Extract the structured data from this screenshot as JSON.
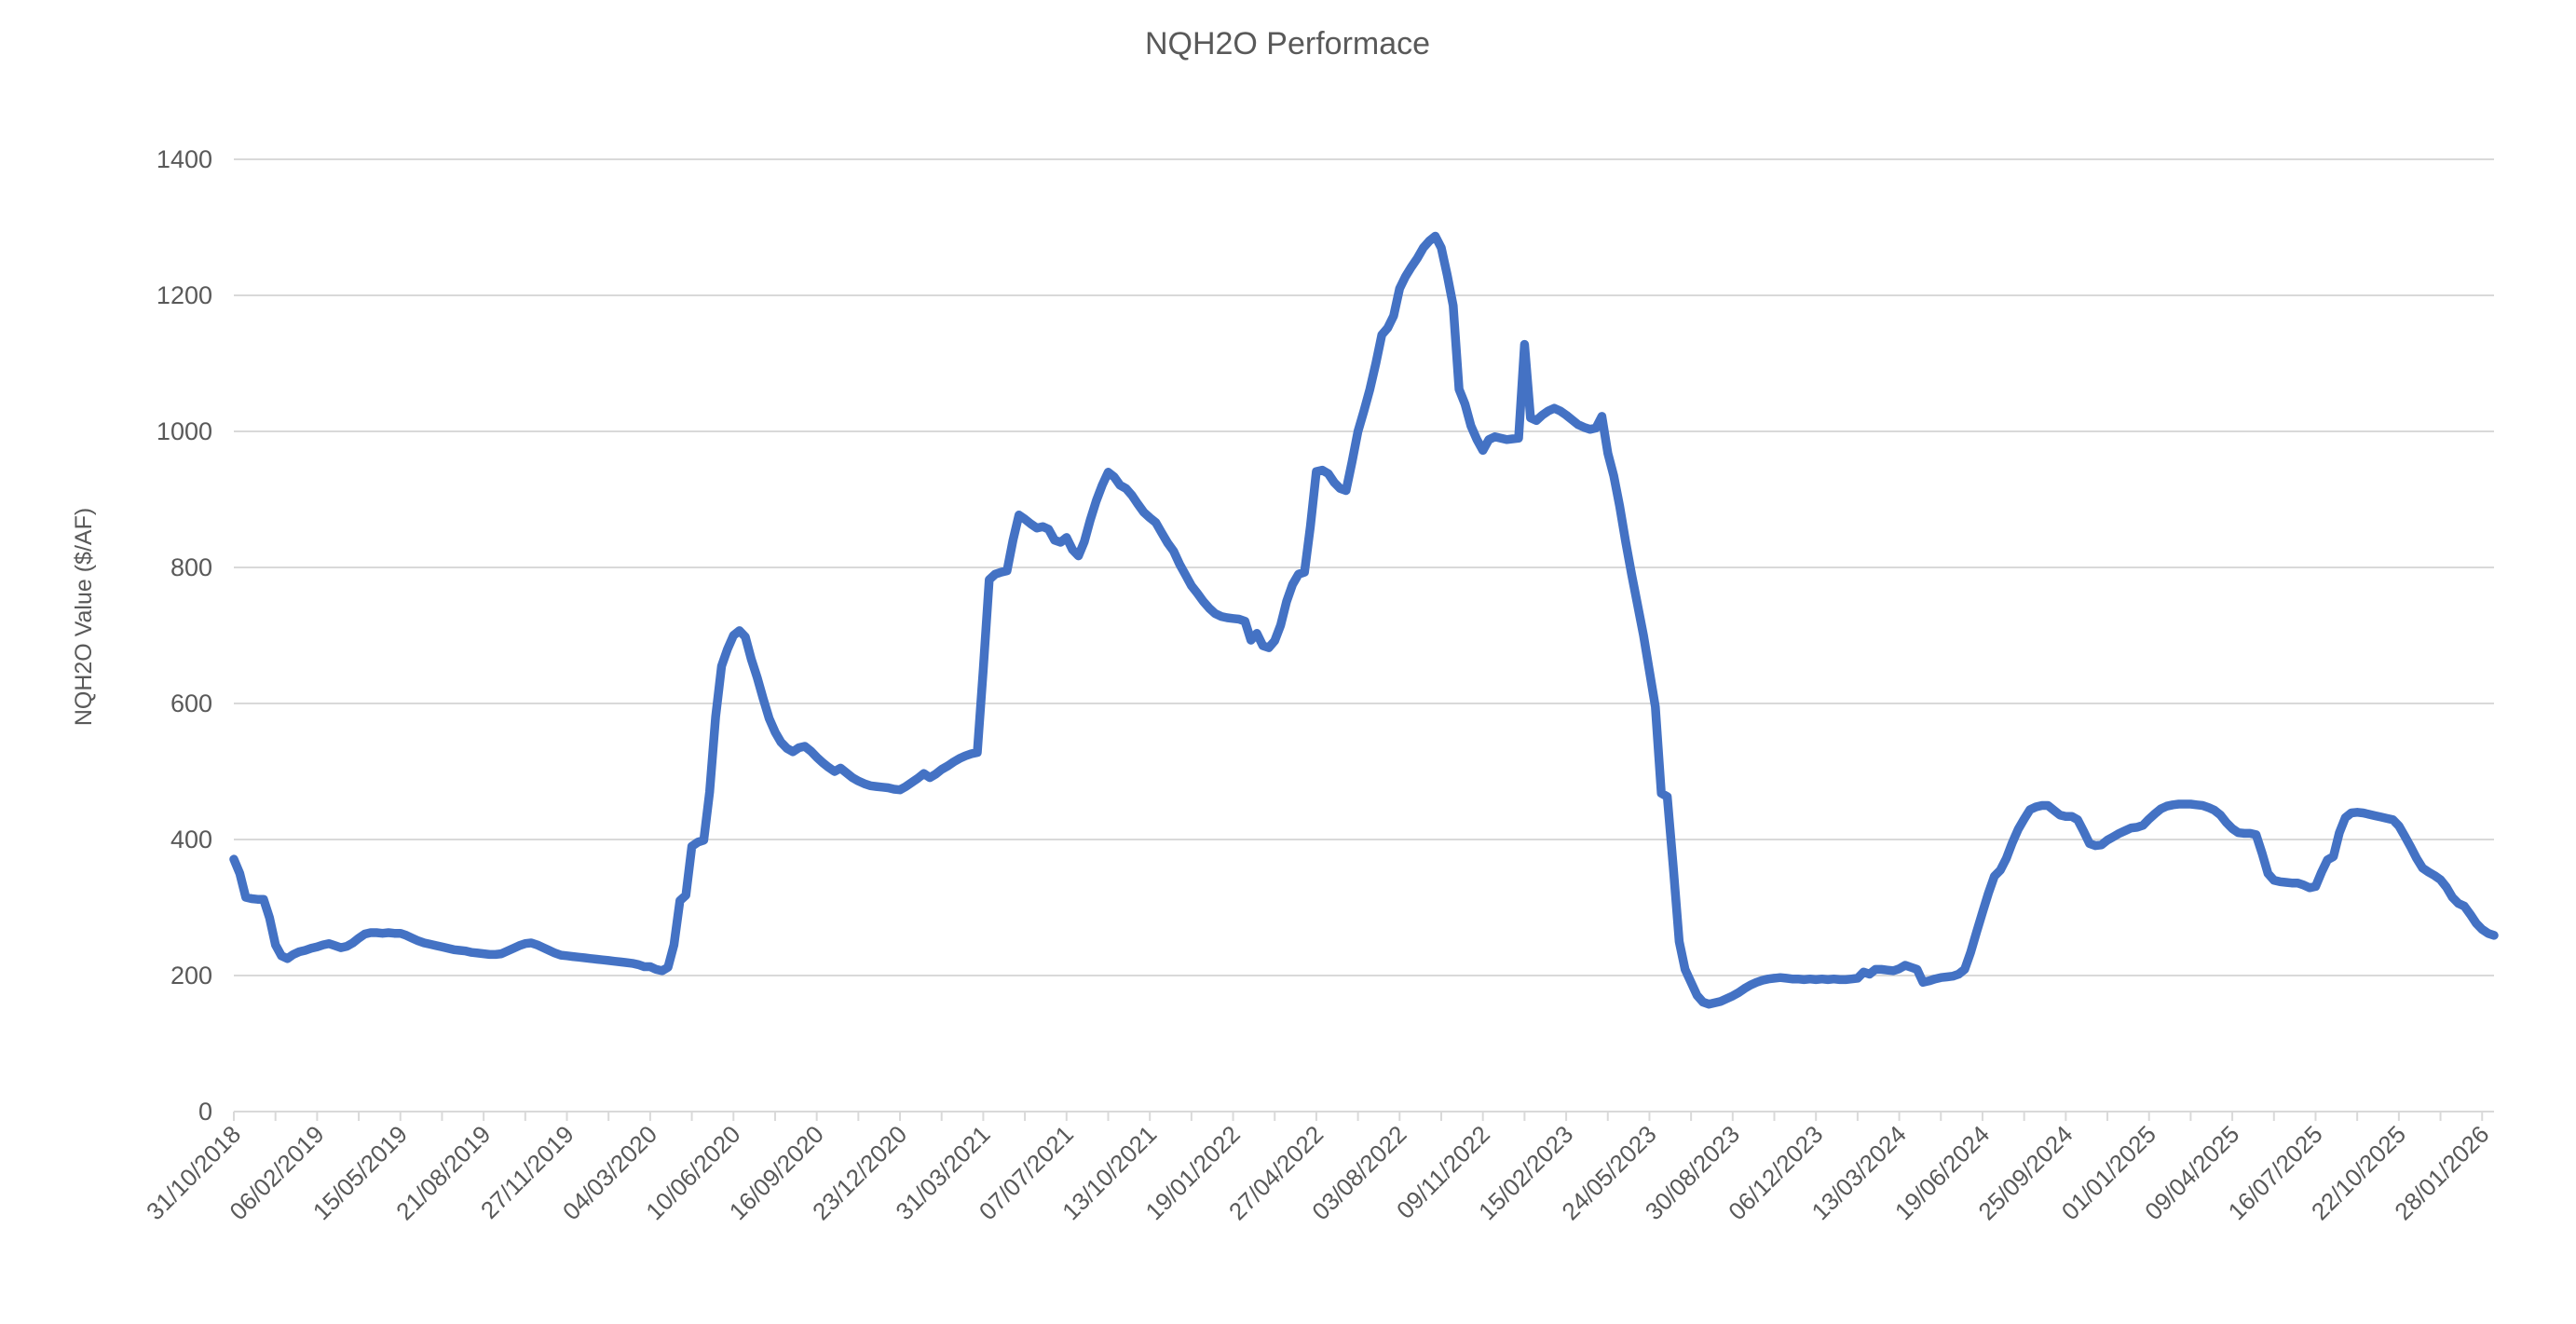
{
  "chart_data": {
    "type": "line",
    "title": "NQH2O Performace",
    "xlabel": "",
    "ylabel": "NQH2O Value ($/AF)",
    "ylim": [
      0,
      1400
    ],
    "ytick_step": 200,
    "ytick_labels": [
      "0",
      "200",
      "400",
      "600",
      "800",
      "1000",
      "1200",
      "1400"
    ],
    "grid": true,
    "legend": "none",
    "start_date": "31/10/2018",
    "weeks_per_point": 1,
    "label_every_n_weeks": 14,
    "minor_tick_every_n_weeks": 7,
    "x_tick_labels": [
      "31/10/2018",
      "06/02/2019",
      "15/05/2019",
      "21/08/2019",
      "27/11/2019",
      "04/03/2020",
      "10/06/2020",
      "16/09/2020",
      "23/12/2020",
      "31/03/2021",
      "07/07/2021",
      "13/10/2021",
      "19/01/2022",
      "27/04/2022",
      "03/08/2022",
      "09/11/2022",
      "15/02/2023",
      "24/05/2023",
      "30/08/2023",
      "06/12/2023",
      "13/03/2024",
      "19/06/2024",
      "25/09/2024",
      "01/01/2025",
      "09/04/2025",
      "16/07/2025",
      "22/10/2025",
      "28/01/2026"
    ],
    "series": [
      {
        "name": "NQH2O",
        "values": [
          371,
          350,
          315,
          313,
          312,
          312,
          285,
          245,
          229,
          225,
          231,
          235,
          237,
          240,
          242,
          245,
          247,
          244,
          241,
          243,
          248,
          255,
          261,
          263,
          263,
          262,
          263,
          262,
          262,
          259,
          255,
          251,
          248,
          246,
          244,
          242,
          240,
          238,
          237,
          236,
          234,
          233,
          232,
          231,
          231,
          232,
          236,
          240,
          244,
          247,
          248,
          245,
          241,
          237,
          233,
          230,
          229,
          228,
          227,
          226,
          225,
          224,
          223,
          222,
          221,
          220,
          219,
          218,
          216,
          213,
          213,
          209,
          207,
          212,
          245,
          310,
          318,
          390,
          396,
          399,
          470,
          580,
          655,
          680,
          700,
          707,
          698,
          665,
          638,
          607,
          578,
          558,
          543,
          534,
          529,
          535,
          537,
          530,
          521,
          513,
          506,
          500,
          505,
          498,
          491,
          486,
          482,
          479,
          478,
          477,
          476,
          474,
          473,
          478,
          484,
          490,
          497,
          491,
          496,
          503,
          508,
          514,
          519,
          523,
          526,
          528,
          650,
          782,
          790,
          793,
          795,
          840,
          877,
          871,
          864,
          858,
          860,
          856,
          840,
          837,
          844,
          826,
          817,
          838,
          870,
          898,
          921,
          940,
          933,
          921,
          916,
          906,
          893,
          881,
          873,
          866,
          851,
          836,
          824,
          805,
          789,
          773,
          762,
          750,
          740,
          732,
          728,
          726,
          725,
          724,
          721,
          693,
          703,
          685,
          682,
          692,
          715,
          750,
          775,
          790,
          793,
          860,
          941,
          943,
          938,
          925,
          916,
          913,
          955,
          1000,
          1030,
          1062,
          1100,
          1142,
          1152,
          1170,
          1210,
          1228,
          1242,
          1255,
          1270,
          1280,
          1287,
          1270,
          1230,
          1185,
          1062,
          1040,
          1008,
          988,
          972,
          988,
          992,
          990,
          988,
          989,
          990,
          1128,
          1020,
          1016,
          1024,
          1030,
          1034,
          1030,
          1024,
          1017,
          1010,
          1006,
          1003,
          1005,
          1022,
          968,
          935,
          890,
          838,
          790,
          745,
          700,
          648,
          595,
          468,
          463,
          360,
          250,
          209,
          190,
          171,
          161,
          158,
          160,
          162,
          166,
          170,
          175,
          181,
          186,
          190,
          193,
          195,
          196,
          197,
          196,
          195,
          195,
          194,
          195,
          194,
          195,
          194,
          195,
          194,
          194,
          195,
          196,
          205,
          202,
          209,
          209,
          208,
          207,
          210,
          215,
          212,
          209,
          190,
          192,
          195,
          197,
          198,
          199,
          202,
          209,
          234,
          264,
          293,
          321,
          346,
          355,
          372,
          395,
          415,
          430,
          444,
          448,
          450,
          450,
          443,
          436,
          434,
          434,
          429,
          412,
          394,
          391,
          392,
          399,
          404,
          409,
          413,
          417,
          418,
          421,
          430,
          438,
          445,
          449,
          451,
          452,
          452,
          452,
          451,
          450,
          447,
          443,
          436,
          425,
          416,
          410,
          409,
          409,
          407,
          380,
          350,
          340,
          338,
          337,
          336,
          336,
          333,
          329,
          331,
          352,
          370,
          375,
          410,
          432,
          439,
          440,
          439,
          437,
          435,
          433,
          431,
          429,
          420,
          405,
          389,
          372,
          358,
          352,
          347,
          341,
          330,
          315,
          306,
          302,
          290,
          277,
          268,
          262,
          259
        ]
      }
    ],
    "colors": {
      "line": "#4472C4",
      "grid": "#D9D9D9",
      "axis": "#D9D9D9",
      "text": "#595959",
      "background": "#FFFFFF"
    }
  }
}
